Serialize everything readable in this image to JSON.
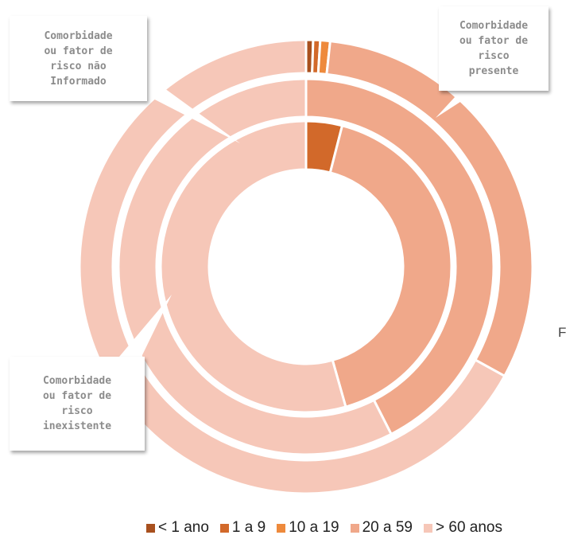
{
  "chart_data": {
    "type": "multi-donut",
    "categories": [
      "< 1 ano",
      "1 a 9",
      "10 a 19",
      "20 a 59",
      "> 60 anos"
    ],
    "colors": [
      "#a8501e",
      "#d2692a",
      "#ee8a3c",
      "#f0a88a",
      "#f6c7b8"
    ],
    "series": [
      {
        "name": "Comorbidade ou fator de risco presente",
        "values": [
          0.5,
          0.5,
          0.7,
          31.3,
          67.0
        ]
      },
      {
        "name": "Comorbidade ou fator de risco não Informado",
        "values": [
          0,
          0,
          0,
          42.5,
          57.5
        ]
      },
      {
        "name": "Comorbidade ou fator de risco inexistente",
        "values": [
          0,
          4.0,
          0,
          41.6,
          54.4
        ]
      }
    ],
    "note": "F"
  }
}
